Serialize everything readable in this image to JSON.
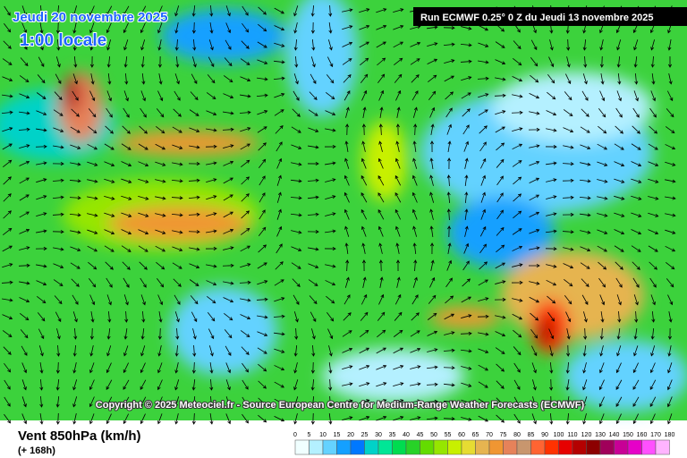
{
  "header": {
    "date": "Jeudi 20 novembre 2025",
    "time": "1:00 locale",
    "run": "Run ECMWF 0.25° 0 Z du Jeudi 13 novembre 2025"
  },
  "copyright": "Copyright © 2025 Meteociel.fr - Source European Centre for Medium-Range Weather Forecasts (ECMWF)",
  "legend": {
    "title": "Vent 850hPa (km/h)",
    "subtitle": "(+ 168h)",
    "ticks": [
      0,
      5,
      10,
      15,
      20,
      25,
      30,
      35,
      40,
      45,
      50,
      55,
      60,
      65,
      70,
      75,
      80,
      85,
      90,
      100,
      110,
      120,
      130,
      140,
      150,
      160,
      170,
      180
    ],
    "colors": [
      "#f0ffff",
      "#b4f0ff",
      "#64d2ff",
      "#14a0ff",
      "#0078ff",
      "#00d2c8",
      "#00e696",
      "#00dc50",
      "#28d228",
      "#64dc00",
      "#96e600",
      "#c8f000",
      "#e6dc32",
      "#e6b450",
      "#f09632",
      "#e6825a",
      "#c8966e",
      "#ff6432",
      "#ff3200",
      "#e60000",
      "#b40000",
      "#8c0000",
      "#a0005a",
      "#c80096",
      "#e600c8",
      "#ff50ff",
      "#ffb4ff"
    ]
  }
}
